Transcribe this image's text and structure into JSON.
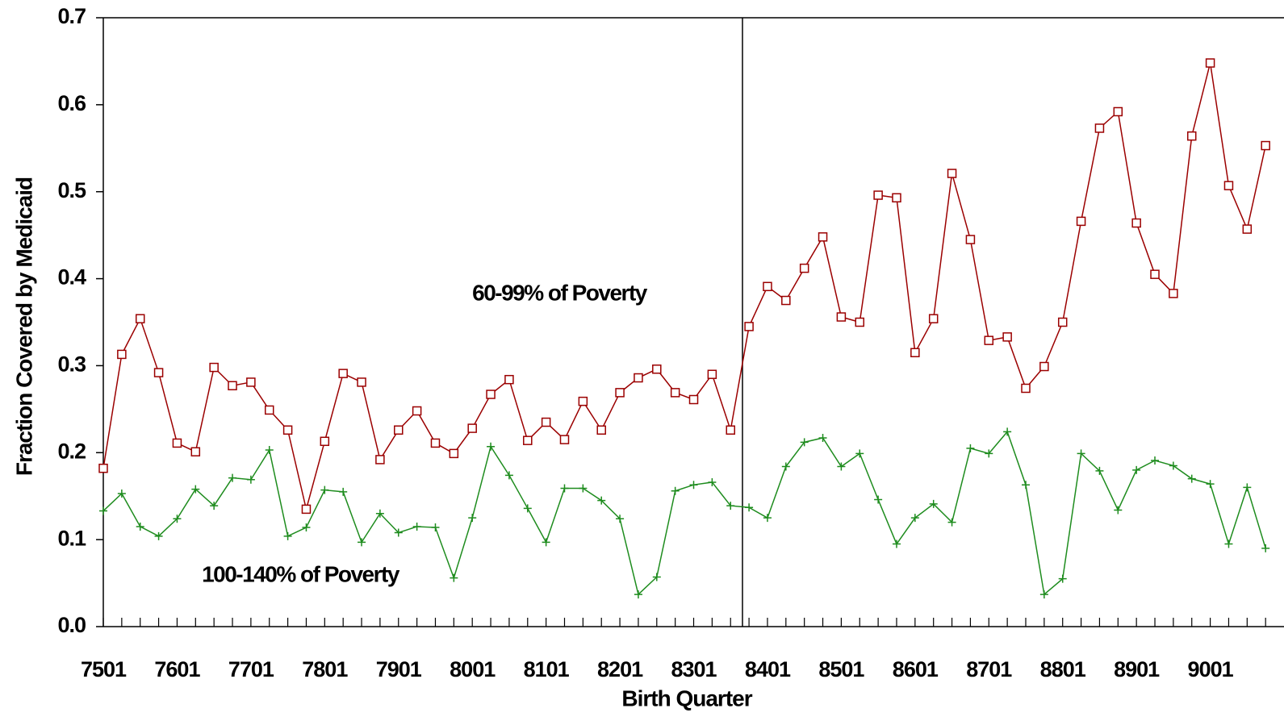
{
  "chart_data": {
    "type": "line",
    "y_label": "Fraction Covered by Medicaid",
    "x_label": "Birth Quarter",
    "ylim": [
      0,
      0.7
    ],
    "yticks": [
      {
        "value": 0,
        "label": "0.0"
      },
      0.1,
      0.2,
      0.3,
      0.4,
      0.5,
      0.6,
      0.7
    ],
    "categories": [
      "7501",
      null,
      null,
      null,
      "7601",
      null,
      null,
      null,
      "7701",
      null,
      null,
      null,
      "7801",
      null,
      null,
      null,
      "7901",
      null,
      null,
      null,
      "8001",
      null,
      null,
      null,
      "8101",
      null,
      null,
      null,
      "8201",
      null,
      null,
      null,
      "8301",
      null,
      null,
      null,
      "8401",
      null,
      null,
      null,
      "8501",
      null,
      null,
      null,
      "8601",
      null,
      null,
      null,
      "8701",
      null,
      null,
      null,
      "8801",
      null,
      null,
      null,
      "8901",
      null,
      null,
      null,
      "9001",
      null,
      null,
      null
    ],
    "series": [
      {
        "name": "60-99% of Poverty",
        "color": "#9b0000",
        "marker": "square",
        "values": [
          0.182,
          0.313,
          0.354,
          0.292,
          0.211,
          0.201,
          0.298,
          0.277,
          0.281,
          0.249,
          0.226,
          0.135,
          0.213,
          0.291,
          0.281,
          0.192,
          0.226,
          0.248,
          0.211,
          0.199,
          0.228,
          0.267,
          0.284,
          0.214,
          0.235,
          0.215,
          0.259,
          0.226,
          0.269,
          0.286,
          0.296,
          0.269,
          0.261,
          0.29,
          0.226,
          0.345,
          0.391,
          0.375,
          0.412,
          0.448,
          0.356,
          0.35,
          0.496,
          0.493,
          0.315,
          0.354,
          0.521,
          0.445,
          0.329,
          0.333,
          0.274,
          0.299,
          0.35,
          0.466,
          0.573,
          0.592,
          0.464,
          0.405,
          0.383,
          0.564,
          0.648,
          0.507,
          0.457,
          0.553
        ]
      },
      {
        "name": "100-140% of Poverty",
        "color": "#1e8c1e",
        "marker": "plus",
        "values": [
          0.133,
          0.153,
          0.115,
          0.104,
          0.124,
          0.158,
          0.139,
          0.171,
          0.169,
          0.203,
          0.104,
          0.114,
          0.157,
          0.155,
          0.097,
          0.13,
          0.108,
          0.115,
          0.114,
          0.056,
          0.125,
          0.207,
          0.174,
          0.136,
          0.097,
          0.159,
          0.159,
          0.145,
          0.124,
          0.037,
          0.057,
          0.156,
          0.163,
          0.166,
          0.139,
          0.137,
          0.125,
          0.184,
          0.212,
          0.217,
          0.184,
          0.199,
          0.146,
          0.095,
          0.125,
          0.141,
          0.12,
          0.205,
          0.199,
          0.224,
          0.163,
          0.037,
          0.055,
          0.199,
          0.179,
          0.134,
          0.18,
          0.191,
          0.185,
          0.17,
          0.164,
          0.095,
          0.16,
          0.09
        ]
      }
    ]
  }
}
